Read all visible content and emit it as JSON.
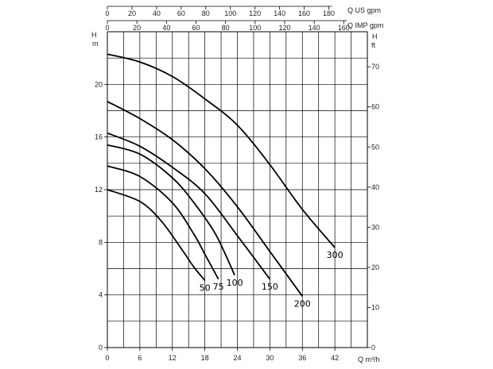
{
  "chart_data": {
    "type": "line",
    "x_primary": {
      "unit": "Q m³/h",
      "range": [
        0,
        48
      ],
      "ticks": [
        0,
        6,
        12,
        18,
        24,
        30,
        36,
        42
      ]
    },
    "x_top_us": {
      "unit": "Q US gpm",
      "ticks": [
        0,
        20,
        40,
        60,
        80,
        100,
        120,
        140,
        160,
        180
      ]
    },
    "x_top_imp": {
      "unit": "Q IMP gpm",
      "ticks": [
        0,
        20,
        40,
        60,
        80,
        100,
        120,
        140,
        160
      ]
    },
    "y_left": {
      "unit_top": "H",
      "unit": "m",
      "range": [
        0,
        24
      ],
      "ticks": [
        0,
        4,
        8,
        12,
        16,
        20
      ]
    },
    "y_right": {
      "unit_top": "H",
      "unit": "ft",
      "ticks": [
        0,
        10,
        20,
        30,
        40,
        50,
        60,
        70
      ]
    },
    "grid": true,
    "series": [
      {
        "name": "50",
        "x": [
          0,
          6,
          10,
          14,
          16,
          18
        ],
        "y": [
          12.0,
          11.1,
          9.6,
          7.3,
          6.1,
          5.1
        ]
      },
      {
        "name": "75",
        "x": [
          0,
          6,
          12,
          16,
          18,
          20.5
        ],
        "y": [
          13.8,
          13.0,
          11.0,
          8.6,
          7.1,
          5.2
        ]
      },
      {
        "name": "100",
        "x": [
          0,
          6,
          12,
          16,
          20,
          23.5
        ],
        "y": [
          15.4,
          14.7,
          12.9,
          11.0,
          8.6,
          5.5
        ]
      },
      {
        "name": "150",
        "x": [
          0,
          6,
          12,
          18,
          24,
          30
        ],
        "y": [
          16.3,
          15.3,
          13.7,
          11.7,
          8.5,
          5.2
        ]
      },
      {
        "name": "200",
        "x": [
          0,
          6,
          12,
          18,
          24,
          30,
          36
        ],
        "y": [
          18.7,
          17.4,
          15.8,
          13.6,
          10.7,
          7.3,
          3.9
        ]
      },
      {
        "name": "300",
        "x": [
          0,
          6,
          12,
          18,
          24,
          30,
          36,
          42
        ],
        "y": [
          22.3,
          21.7,
          20.6,
          18.9,
          16.9,
          13.9,
          10.5,
          7.6
        ]
      }
    ]
  }
}
